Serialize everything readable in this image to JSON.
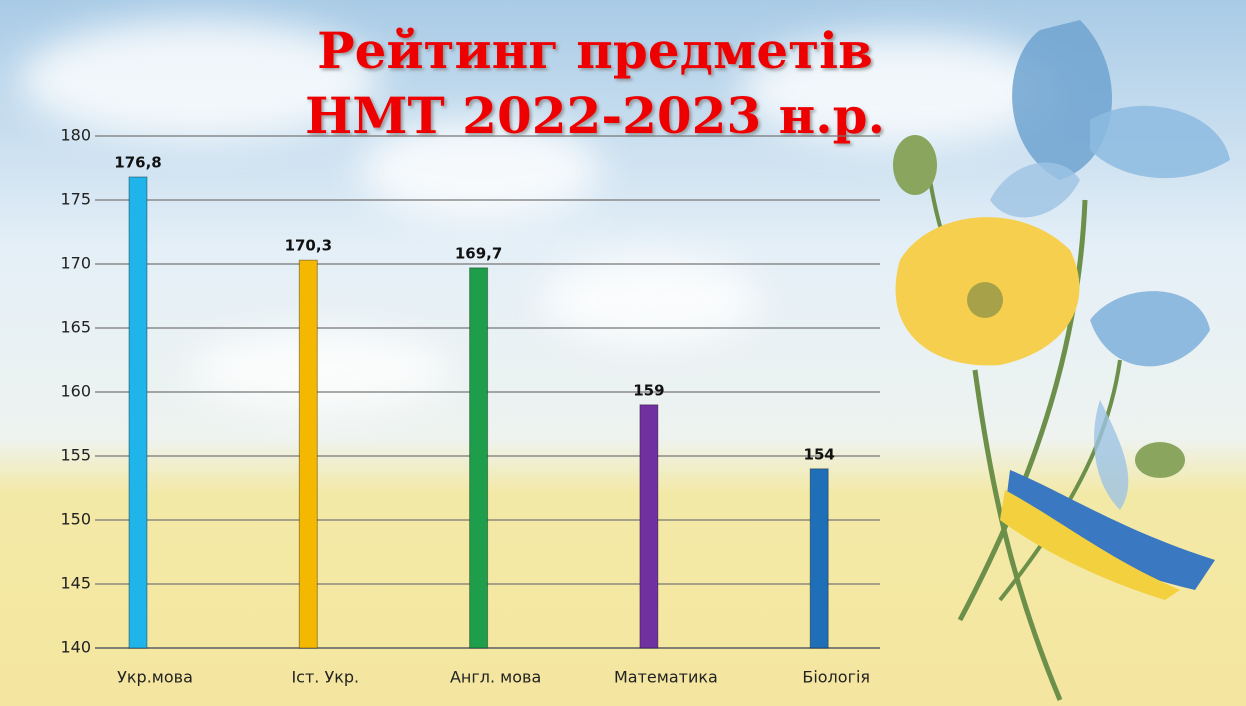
{
  "chart_data": {
    "type": "bar",
    "title": [
      "Рейтинг предметів",
      "НМТ 2022-2023 н.р."
    ],
    "categories": [
      "Укр.мова",
      "Іст. Укр.",
      "Англ. мова",
      "Математика",
      "Біологія"
    ],
    "values": [
      176.8,
      170.3,
      169.7,
      159,
      154
    ],
    "value_labels": [
      "176,8",
      "170,3",
      "169,7",
      "159",
      "154"
    ],
    "colors": [
      "#1fb4ea",
      "#f5b800",
      "#1e9e4a",
      "#7030a0",
      "#1f6fb8"
    ],
    "ylim": [
      140,
      180
    ],
    "yticks": [
      140,
      145,
      150,
      155,
      160,
      165,
      170,
      175,
      180
    ],
    "grid": true
  }
}
